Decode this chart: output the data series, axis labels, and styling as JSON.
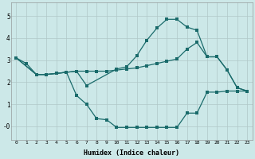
{
  "xlabel": "Humidex (Indice chaleur)",
  "background_color": "#cce8e8",
  "grid_color": "#b0c8c8",
  "line_color": "#1a6b6b",
  "xlim": [
    -0.5,
    23.5
  ],
  "ylim": [
    -0.6,
    5.6
  ],
  "line1_x": [
    0,
    1,
    2,
    3,
    4,
    5,
    6,
    7,
    10,
    11,
    12,
    13,
    14,
    15,
    16,
    17,
    18,
    19,
    20,
    21,
    22,
    23
  ],
  "line1_y": [
    3.1,
    2.85,
    2.35,
    2.35,
    2.4,
    2.45,
    2.5,
    1.85,
    2.6,
    2.7,
    3.2,
    3.9,
    4.45,
    4.85,
    4.85,
    4.5,
    4.35,
    3.15,
    3.15,
    2.55,
    1.75,
    1.6
  ],
  "line2_x": [
    0,
    2,
    3,
    4,
    5,
    6,
    7,
    8,
    9,
    10,
    11,
    12,
    13,
    14,
    15,
    16,
    17,
    18,
    19,
    20,
    21,
    22,
    23
  ],
  "line2_y": [
    3.1,
    2.35,
    2.35,
    2.4,
    2.45,
    1.4,
    1.0,
    0.35,
    0.3,
    -0.05,
    -0.05,
    -0.05,
    -0.05,
    -0.05,
    -0.05,
    -0.05,
    0.6,
    0.6,
    1.55,
    1.55,
    1.6,
    1.6,
    1.6
  ],
  "line3_x": [
    0,
    2,
    3,
    4,
    5,
    6,
    7,
    8,
    9,
    10,
    11,
    12,
    13,
    14,
    15,
    16,
    17,
    18,
    19,
    20,
    21,
    22,
    23
  ],
  "line3_y": [
    3.1,
    2.35,
    2.35,
    2.4,
    2.45,
    2.5,
    2.5,
    2.5,
    2.5,
    2.55,
    2.6,
    2.65,
    2.75,
    2.85,
    2.95,
    3.05,
    3.5,
    3.8,
    3.15,
    3.15,
    2.55,
    1.75,
    1.6
  ]
}
